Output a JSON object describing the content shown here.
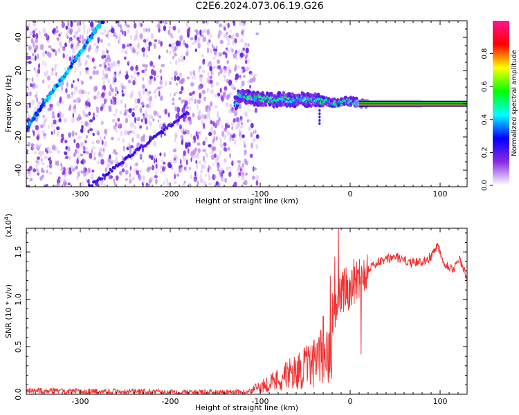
{
  "title": "C2E6.2024.073.06.19.G26",
  "chart_data": [
    {
      "type": "heatmap",
      "name": "spectrogram",
      "xlabel": "Height of straight line (km)",
      "ylabel": "Frequency (Hz)",
      "xlim": [
        -360,
        130
      ],
      "ylim": [
        -50,
        50
      ],
      "xticks": [
        -300,
        -200,
        -100,
        0,
        100
      ],
      "yticks": [
        -40,
        -20,
        0,
        20,
        40
      ],
      "colorbar": {
        "label": "Normalized spectral amplitude",
        "range": [
          0,
          1
        ],
        "ticks": [
          "0.0",
          "0.2",
          "0.4",
          "0.6",
          "0.8"
        ],
        "tick_values": [
          0.0,
          0.2,
          0.4,
          0.6,
          0.8
        ],
        "colormap": [
          "#ffffff",
          "#8a2be2",
          "#0000ff",
          "#00ffff",
          "#00ff00",
          "#ffff00",
          "#ff0000",
          "#ff1493"
        ]
      },
      "features": {
        "noise_region_x": [
          -360,
          -112
        ],
        "signal_track": [
          [
            -125,
            5
          ],
          [
            -115,
            4
          ],
          [
            -105,
            3
          ],
          [
            -95,
            3
          ],
          [
            -85,
            2
          ],
          [
            -75,
            3
          ],
          [
            -65,
            2
          ],
          [
            -55,
            3
          ],
          [
            -45,
            2
          ],
          [
            -35,
            2
          ],
          [
            -25,
            1
          ],
          [
            -15,
            0
          ],
          [
            -5,
            2
          ],
          [
            5,
            1
          ],
          [
            15,
            0
          ],
          [
            130,
            0
          ]
        ],
        "diagonal_lines": [
          {
            "x": [
              -360,
              -275
            ],
            "y": [
              -15,
              50
            ]
          },
          {
            "x": [
              -290,
              -180
            ],
            "y": [
              -50,
              -5
            ]
          }
        ]
      }
    },
    {
      "type": "line",
      "name": "snr",
      "xlabel": "Height of straight line (km)",
      "ylabel": "SNR (10 * v/v)",
      "multiplier": "(x10",
      "multiplier_exp": "4",
      "multiplier_close": ")",
      "xlim": [
        -360,
        130
      ],
      "ylim": [
        0,
        1.75
      ],
      "xticks": [
        -300,
        -200,
        -100,
        0,
        100
      ],
      "yticks": [
        "0.0",
        "0.5",
        "1.0",
        "1.5"
      ],
      "ytick_values": [
        0.0,
        0.5,
        1.0,
        1.5
      ],
      "color": "#ee3333",
      "envelope": [
        [
          -360,
          0.04
        ],
        [
          -300,
          0.03
        ],
        [
          -250,
          0.03
        ],
        [
          -200,
          0.02
        ],
        [
          -150,
          0.02
        ],
        [
          -120,
          0.02
        ],
        [
          -110,
          0.05
        ],
        [
          -100,
          0.1
        ],
        [
          -90,
          0.15
        ],
        [
          -80,
          0.2
        ],
        [
          -70,
          0.25
        ],
        [
          -60,
          0.3
        ],
        [
          -50,
          0.35
        ],
        [
          -40,
          0.4
        ],
        [
          -30,
          0.5
        ],
        [
          -25,
          0.7
        ],
        [
          -20,
          0.85
        ],
        [
          -15,
          0.95
        ],
        [
          -10,
          1.05
        ],
        [
          0,
          1.15
        ],
        [
          10,
          1.25
        ],
        [
          20,
          1.33
        ],
        [
          30,
          1.38
        ],
        [
          40,
          1.42
        ],
        [
          50,
          1.45
        ],
        [
          60,
          1.41
        ],
        [
          70,
          1.38
        ],
        [
          80,
          1.4
        ],
        [
          90,
          1.45
        ],
        [
          97,
          1.58
        ],
        [
          105,
          1.38
        ],
        [
          115,
          1.32
        ],
        [
          122,
          1.42
        ],
        [
          130,
          1.22
        ]
      ],
      "spikes": [
        [
          -13,
          1.78
        ],
        [
          -17,
          1.45
        ],
        [
          -22,
          1.25
        ],
        [
          12,
          0.42
        ],
        [
          -30,
          0.82
        ]
      ]
    }
  ]
}
